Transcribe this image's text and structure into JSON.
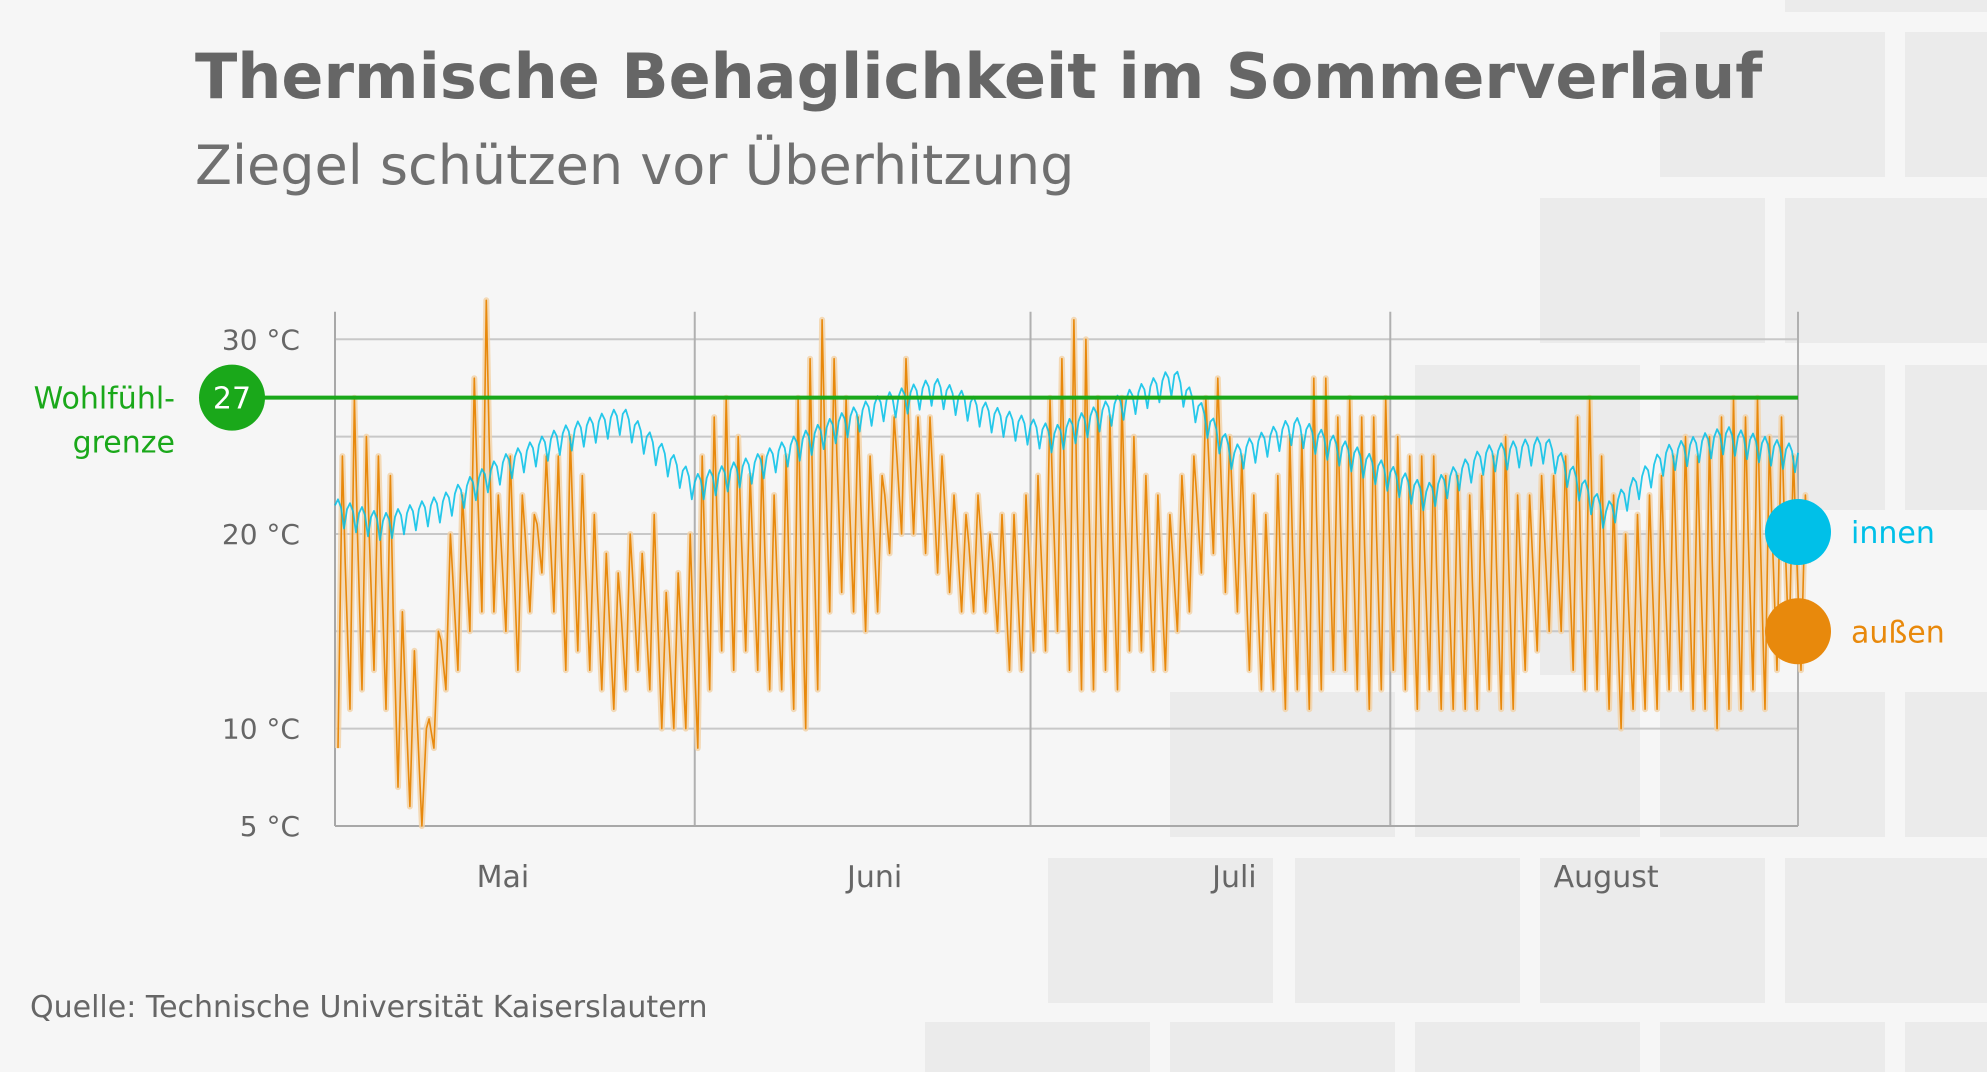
{
  "header": {
    "title": "Thermische Behaglichkeit im Sommerverlauf",
    "subtitle": "Ziegel schützen vor Überhitzung"
  },
  "footer": {
    "source": "Quelle: Technische Universität Kaiserslautern"
  },
  "colors": {
    "background": "#f6f6f6",
    "brick": "#ebebeb",
    "text": "#666666",
    "grid": "#c8c8c8",
    "innen": "#00c0e8",
    "aussen": "#e8890c",
    "limit": "#1aa81a"
  },
  "chart_data": {
    "type": "line",
    "title": "Thermische Behaglichkeit im Sommerverlauf",
    "subtitle": "Ziegel schützen vor Überhitzung",
    "xlabel": "",
    "ylabel": "",
    "unit": "°C",
    "ylim": [
      5,
      31
    ],
    "y_ticks": [
      {
        "value": 5,
        "label": "5 °C"
      },
      {
        "value": 10,
        "label": "10 °C"
      },
      {
        "value": 20,
        "label": "20 °C"
      },
      {
        "value": 30,
        "label": "30 °C"
      }
    ],
    "y_gridlines": [
      10,
      15,
      20,
      25,
      30
    ],
    "x_start": "2018-05-01",
    "x_end": "2018-08-31",
    "month_labels": [
      {
        "label": "Mai",
        "date": "2018-05-15"
      },
      {
        "label": "Juni",
        "date": "2018-06-15"
      },
      {
        "label": "Juli",
        "date": "2018-07-15"
      },
      {
        "label": "August",
        "date": "2018-08-15"
      }
    ],
    "vertical_gridlines": [
      "2018-05-01",
      "2018-05-31",
      "2018-06-28",
      "2018-07-28",
      "2018-08-31"
    ],
    "reference_line": {
      "value": 27,
      "label": "27",
      "name_lines": [
        "Wohlfühl-",
        "grenze"
      ]
    },
    "series": [
      {
        "name": "innen",
        "color": "#00c0e8",
        "dates": [
          "2018-05-01",
          "2018-05-05",
          "2018-05-10",
          "2018-05-15",
          "2018-05-20",
          "2018-05-25",
          "2018-05-31",
          "2018-06-05",
          "2018-06-10",
          "2018-06-15",
          "2018-06-20",
          "2018-06-25",
          "2018-06-30",
          "2018-07-05",
          "2018-07-10",
          "2018-07-15",
          "2018-07-20",
          "2018-07-25",
          "2018-07-31",
          "2018-08-05",
          "2018-08-10",
          "2018-08-15",
          "2018-08-20",
          "2018-08-25",
          "2018-08-31"
        ],
        "values": [
          21.3,
          20.5,
          21.5,
          23.5,
          25.0,
          26.0,
          22.5,
          23.5,
          25.0,
          26.5,
          27.5,
          26.0,
          25.0,
          26.5,
          28.0,
          24.0,
          25.5,
          24.0,
          22.0,
          24.0,
          24.5,
          21.0,
          24.0,
          25.0,
          24.0
        ]
      },
      {
        "name": "außen",
        "color": "#e8890c",
        "dates": [
          "2018-05-01",
          "2018-05-02",
          "2018-05-03",
          "2018-05-04",
          "2018-05-05",
          "2018-05-06",
          "2018-05-07",
          "2018-05-08",
          "2018-05-09",
          "2018-05-10",
          "2018-05-11",
          "2018-05-12",
          "2018-05-13",
          "2018-05-14",
          "2018-05-15",
          "2018-05-16",
          "2018-05-17",
          "2018-05-18",
          "2018-05-19",
          "2018-05-20",
          "2018-05-21",
          "2018-05-22",
          "2018-05-23",
          "2018-05-24",
          "2018-05-25",
          "2018-05-26",
          "2018-05-27",
          "2018-05-28",
          "2018-05-29",
          "2018-05-30",
          "2018-05-31",
          "2018-06-01",
          "2018-06-02",
          "2018-06-03",
          "2018-06-04",
          "2018-06-05",
          "2018-06-06",
          "2018-06-07",
          "2018-06-08",
          "2018-06-09",
          "2018-06-10",
          "2018-06-11",
          "2018-06-12",
          "2018-06-13",
          "2018-06-14",
          "2018-06-15",
          "2018-06-16",
          "2018-06-17",
          "2018-06-18",
          "2018-06-19",
          "2018-06-20",
          "2018-06-21",
          "2018-06-22",
          "2018-06-23",
          "2018-06-24",
          "2018-06-25",
          "2018-06-26",
          "2018-06-27",
          "2018-06-28",
          "2018-06-29",
          "2018-06-30",
          "2018-07-01",
          "2018-07-02",
          "2018-07-03",
          "2018-07-04",
          "2018-07-05",
          "2018-07-06",
          "2018-07-07",
          "2018-07-08",
          "2018-07-09",
          "2018-07-10",
          "2018-07-11",
          "2018-07-12",
          "2018-07-13",
          "2018-07-14",
          "2018-07-15",
          "2018-07-16",
          "2018-07-17",
          "2018-07-18",
          "2018-07-19",
          "2018-07-20",
          "2018-07-21",
          "2018-07-22",
          "2018-07-23",
          "2018-07-24",
          "2018-07-25",
          "2018-07-26",
          "2018-07-27",
          "2018-07-28",
          "2018-07-29",
          "2018-07-30",
          "2018-07-31",
          "2018-08-01",
          "2018-08-02",
          "2018-08-03",
          "2018-08-04",
          "2018-08-05",
          "2018-08-06",
          "2018-08-07",
          "2018-08-08",
          "2018-08-09",
          "2018-08-10",
          "2018-08-11",
          "2018-08-12",
          "2018-08-13",
          "2018-08-14",
          "2018-08-15",
          "2018-08-16",
          "2018-08-17",
          "2018-08-18",
          "2018-08-19",
          "2018-08-20",
          "2018-08-21",
          "2018-08-22",
          "2018-08-23",
          "2018-08-24",
          "2018-08-25",
          "2018-08-26",
          "2018-08-27",
          "2018-08-28",
          "2018-08-29",
          "2018-08-30",
          "2018-08-31"
        ],
        "min": [
          9,
          11,
          12,
          13,
          11,
          7,
          6,
          5,
          9,
          12,
          13,
          15,
          16,
          16,
          15,
          13,
          16,
          18,
          16,
          13,
          14,
          13,
          12,
          11,
          12,
          13,
          12,
          10,
          10,
          10,
          9,
          12,
          14,
          13,
          14,
          13,
          12,
          12,
          11,
          10,
          12,
          16,
          17,
          16,
          15,
          16,
          19,
          20,
          20,
          19,
          18,
          17,
          16,
          16,
          16,
          15,
          13,
          13,
          14,
          14,
          15,
          13,
          12,
          12,
          13,
          12,
          14,
          14,
          13,
          13,
          15,
          16,
          18,
          19,
          17,
          16,
          13,
          12,
          12,
          11,
          12,
          11,
          12,
          13,
          13,
          12,
          11,
          12,
          13,
          12,
          11,
          12,
          11,
          11,
          11,
          11,
          12,
          11,
          11,
          13,
          14,
          15,
          15,
          13,
          12,
          12,
          11,
          10,
          11,
          11,
          11,
          12,
          12,
          11,
          11,
          10,
          11,
          11,
          12,
          11,
          13,
          14,
          13
        ],
        "max": [
          24,
          27,
          25,
          24,
          23,
          16,
          14,
          10,
          15,
          20,
          22,
          28,
          32,
          22,
          24,
          22,
          21,
          24,
          24,
          25,
          23,
          21,
          19,
          18,
          20,
          19,
          21,
          17,
          18,
          20,
          24,
          26,
          27,
          25,
          23,
          24,
          22,
          24,
          27,
          29,
          31,
          29,
          27,
          26,
          24,
          23,
          26,
          29,
          26,
          26,
          24,
          22,
          21,
          22,
          20,
          21,
          21,
          22,
          23,
          27,
          29,
          31,
          30,
          27,
          26,
          27,
          25,
          23,
          22,
          21,
          23,
          24,
          27,
          28,
          25,
          24,
          22,
          21,
          23,
          25,
          25,
          28,
          28,
          26,
          27,
          26,
          26,
          27,
          25,
          24,
          24,
          24,
          23,
          23,
          22,
          23,
          24,
          25,
          22,
          22,
          23,
          23,
          24,
          26,
          27,
          24,
          22,
          20,
          21,
          22,
          23,
          24,
          25,
          24,
          25,
          26,
          27,
          26,
          27,
          25,
          26,
          24,
          22
        ]
      }
    ]
  }
}
